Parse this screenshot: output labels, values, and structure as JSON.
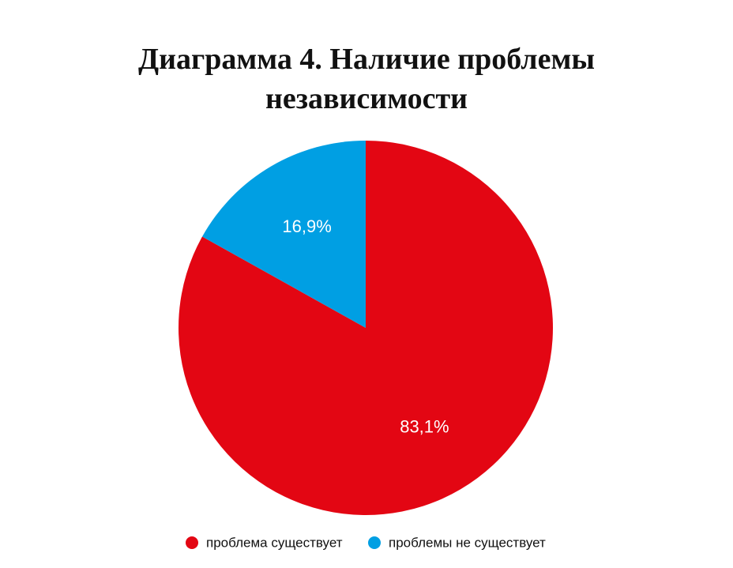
{
  "chart_data": {
    "type": "pie",
    "title": "Диаграмма 4. Наличие проблемы независимости",
    "categories": [
      "проблема существует",
      "проблемы не существует"
    ],
    "values": [
      83.1,
      16.9
    ],
    "value_labels": [
      "83,1%",
      "16,9%"
    ],
    "colors": [
      "#e30613",
      "#009fe3"
    ]
  }
}
